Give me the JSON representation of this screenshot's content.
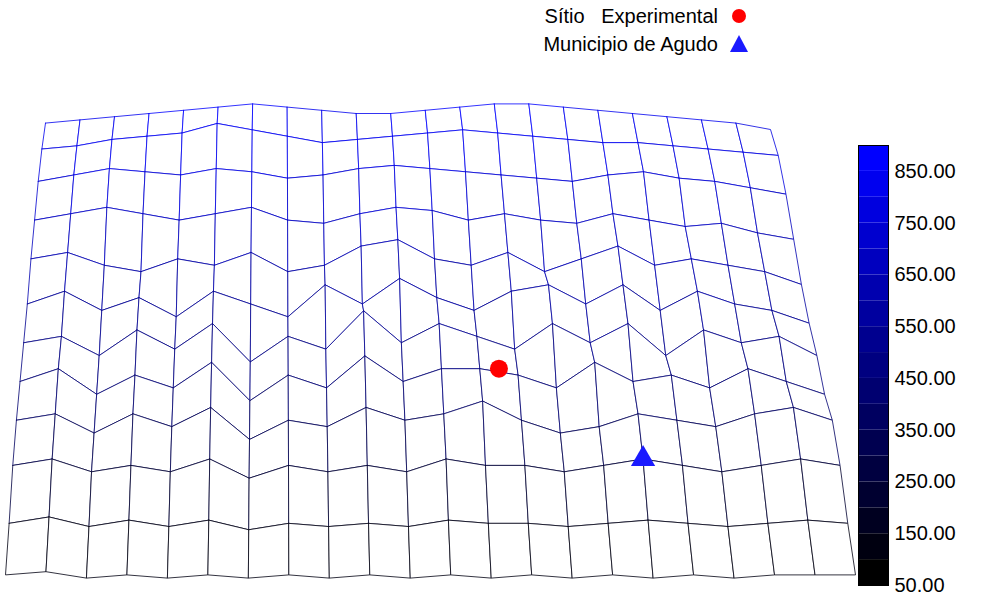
{
  "chart_data": {
    "type": "surface",
    "tick_labels": false,
    "legend": "top right",
    "z": [
      [
        820,
        830,
        840,
        850,
        860,
        870,
        880,
        870,
        860,
        850,
        850,
        860,
        870,
        880,
        880,
        870,
        860,
        850,
        840,
        830,
        820,
        800
      ],
      [
        800,
        810,
        830,
        840,
        850,
        880,
        860,
        840,
        820,
        830,
        840,
        850,
        860,
        850,
        840,
        830,
        820,
        820,
        810,
        800,
        790,
        780
      ],
      [
        760,
        780,
        800,
        790,
        780,
        800,
        790,
        770,
        780,
        800,
        810,
        800,
        790,
        780,
        770,
        760,
        780,
        790,
        770,
        760,
        740,
        720
      ],
      [
        700,
        720,
        740,
        720,
        700,
        720,
        740,
        700,
        690,
        720,
        740,
        730,
        700,
        720,
        700,
        690,
        720,
        700,
        680,
        690,
        660,
        640
      ],
      [
        640,
        660,
        620,
        600,
        640,
        620,
        660,
        600,
        620,
        680,
        700,
        640,
        620,
        660,
        600,
        640,
        680,
        620,
        640,
        620,
        600,
        560
      ],
      [
        560,
        600,
        540,
        580,
        520,
        600,
        560,
        520,
        620,
        560,
        640,
        580,
        540,
        600,
        620,
        560,
        620,
        540,
        600,
        560,
        540,
        500
      ],
      [
        500,
        520,
        460,
        540,
        480,
        560,
        440,
        520,
        480,
        600,
        500,
        560,
        520,
        480,
        560,
        500,
        560,
        460,
        540,
        500,
        520,
        460
      ],
      [
        440,
        480,
        400,
        460,
        420,
        500,
        380,
        460,
        420,
        520,
        440,
        480,
        480,
        460,
        420,
        500,
        440,
        460,
        420,
        480,
        440,
        400
      ],
      [
        380,
        400,
        340,
        400,
        360,
        420,
        320,
        380,
        360,
        420,
        380,
        400,
        440,
        380,
        340,
        360,
        400,
        380,
        360,
        400,
        420,
        380
      ],
      [
        300,
        320,
        280,
        300,
        280,
        320,
        260,
        300,
        280,
        300,
        280,
        320,
        300,
        300,
        280,
        300,
        320,
        300,
        280,
        300,
        320,
        300
      ],
      [
        180,
        200,
        170,
        190,
        170,
        190,
        160,
        180,
        170,
        180,
        170,
        190,
        180,
        180,
        170,
        180,
        190,
        180,
        170,
        180,
        190,
        180
      ],
      [
        80,
        90,
        70,
        80,
        70,
        80,
        70,
        80,
        70,
        80,
        70,
        80,
        70,
        80,
        70,
        80,
        70,
        80,
        70,
        80,
        80,
        80
      ]
    ],
    "colorbar": {
      "range": [
        50,
        900
      ],
      "colors": [
        "#000000",
        "#0000ff"
      ],
      "ticks": [
        {
          "value": 50,
          "label": "50.00"
        },
        {
          "value": 150,
          "label": "150.00"
        },
        {
          "value": 250,
          "label": "250.00"
        },
        {
          "value": 350,
          "label": "350.00"
        },
        {
          "value": 450,
          "label": "450.00"
        },
        {
          "value": 550,
          "label": "550.00"
        },
        {
          "value": 650,
          "label": "650.00"
        },
        {
          "value": 750,
          "label": "750.00"
        },
        {
          "value": 850,
          "label": "850.00"
        }
      ]
    },
    "series": [
      {
        "name": "Sítio   Experimental",
        "color": "#ff0000",
        "marker": "circle",
        "x": [
          12.5
        ],
        "y": [
          7
        ],
        "z": [
          480
        ]
      },
      {
        "name": "Municipio de Agudo",
        "color": "#1a1aff",
        "marker": "triangle",
        "x": [
          16
        ],
        "y": [
          9
        ],
        "z": [
          320
        ]
      }
    ]
  }
}
